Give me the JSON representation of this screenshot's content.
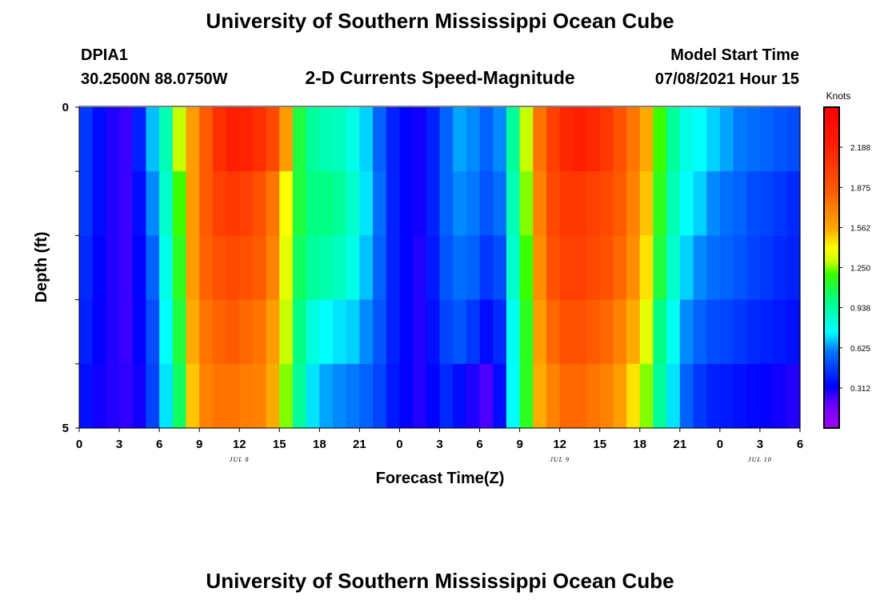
{
  "header": {
    "title": "University of Southern Mississippi Ocean Cube",
    "station_id": "DPIA1",
    "coordinates": "30.2500N  88.0750W",
    "subtitle": "2-D Currents Speed-Magnitude",
    "model_label": "Model Start Time",
    "model_time": "07/08/2021 Hour 15"
  },
  "footer": {
    "title": "University of Southern Mississippi Ocean Cube"
  },
  "chart_data": {
    "type": "heatmap",
    "title": "2-D Currents Speed-Magnitude",
    "xlabel": "Forecast Time(Z)",
    "ylabel": "Depth (ft)",
    "x_tick_labels": [
      "0",
      "3",
      "6",
      "9",
      "12",
      "15",
      "18",
      "21",
      "0",
      "3",
      "6",
      "9",
      "12",
      "15",
      "18",
      "21",
      "0",
      "3",
      "6"
    ],
    "x_tick_hours": [
      0,
      3,
      6,
      9,
      12,
      15,
      18,
      21,
      24,
      27,
      30,
      33,
      36,
      39,
      42,
      45,
      48,
      51,
      54
    ],
    "xlim": [
      0,
      54
    ],
    "date_labels": [
      {
        "text": "JUL 8",
        "hour": 12
      },
      {
        "text": "JUL 9",
        "hour": 36
      },
      {
        "text": "JUL 10",
        "hour": 51
      }
    ],
    "y_tick_labels": [
      "0",
      "5"
    ],
    "ylim": [
      0,
      5
    ],
    "colorbar": {
      "unit": "Knots",
      "min": 0.0,
      "max": 2.5,
      "tick_labels": [
        "2.188",
        "1.875",
        "1.562",
        "1.250",
        "0.938",
        "0.625",
        "0.312"
      ],
      "tick_values": [
        2.188,
        1.875,
        1.562,
        1.25,
        0.938,
        0.625,
        0.312
      ]
    },
    "depth_layers": [
      0,
      1,
      2,
      3,
      4
    ],
    "time_hours": [
      0,
      1,
      2,
      3,
      4,
      5,
      6,
      7,
      8,
      9,
      10,
      11,
      12,
      13,
      14,
      15,
      16,
      17,
      18,
      19,
      20,
      21,
      22,
      23,
      24,
      25,
      26,
      27,
      28,
      29,
      30,
      31,
      32,
      33,
      34,
      35,
      36,
      37,
      38,
      39,
      40,
      41,
      42,
      43,
      44,
      45,
      46,
      47,
      48,
      49,
      50,
      51,
      52,
      53
    ],
    "speed_knots": [
      [
        0.45,
        0.35,
        0.28,
        0.25,
        0.4,
        0.68,
        0.9,
        1.3,
        1.6,
        1.85,
        2.1,
        2.2,
        2.18,
        2.1,
        1.95,
        1.6,
        1.1,
        0.95,
        0.9,
        0.88,
        0.8,
        0.7,
        0.55,
        0.4,
        0.33,
        0.3,
        0.4,
        0.55,
        0.65,
        0.62,
        0.55,
        0.62,
        0.95,
        1.3,
        1.75,
        2.0,
        2.15,
        2.2,
        2.15,
        2.05,
        1.9,
        1.75,
        1.55,
        1.2,
        0.95,
        0.8,
        0.75,
        0.7,
        0.65,
        0.6,
        0.58,
        0.55,
        0.52,
        0.5
      ],
      [
        0.45,
        0.35,
        0.28,
        0.25,
        0.35,
        0.62,
        0.85,
        1.2,
        1.6,
        1.85,
        2.0,
        2.05,
        2.0,
        1.9,
        1.75,
        1.4,
        1.1,
        1.0,
        1.0,
        0.95,
        0.85,
        0.72,
        0.58,
        0.4,
        0.33,
        0.3,
        0.4,
        0.55,
        0.62,
        0.6,
        0.52,
        0.58,
        0.9,
        1.25,
        1.7,
        1.95,
        2.05,
        2.05,
        2.0,
        1.95,
        1.85,
        1.7,
        1.5,
        1.15,
        0.9,
        0.75,
        0.7,
        0.62,
        0.58,
        0.55,
        0.5,
        0.48,
        0.45,
        0.42
      ],
      [
        0.42,
        0.33,
        0.28,
        0.25,
        0.33,
        0.55,
        0.8,
        1.15,
        1.6,
        1.82,
        1.9,
        1.95,
        1.9,
        1.85,
        1.7,
        1.35,
        1.05,
        0.95,
        0.92,
        0.88,
        0.8,
        0.68,
        0.55,
        0.4,
        0.33,
        0.28,
        0.38,
        0.52,
        0.58,
        0.55,
        0.45,
        0.5,
        0.85,
        1.2,
        1.65,
        1.9,
        2.0,
        2.0,
        1.95,
        1.9,
        1.8,
        1.65,
        1.45,
        1.1,
        0.85,
        0.7,
        0.62,
        0.58,
        0.55,
        0.52,
        0.48,
        0.45,
        0.42,
        0.4
      ],
      [
        0.4,
        0.32,
        0.28,
        0.25,
        0.32,
        0.5,
        0.75,
        1.1,
        1.55,
        1.75,
        1.82,
        1.85,
        1.8,
        1.75,
        1.6,
        1.3,
        1.0,
        0.82,
        0.75,
        0.72,
        0.7,
        0.62,
        0.52,
        0.4,
        0.33,
        0.28,
        0.36,
        0.48,
        0.52,
        0.45,
        0.35,
        0.42,
        0.78,
        1.15,
        1.6,
        1.8,
        1.9,
        1.9,
        1.85,
        1.8,
        1.7,
        1.55,
        1.35,
        1.0,
        0.78,
        0.62,
        0.55,
        0.5,
        0.48,
        0.45,
        0.42,
        0.4,
        0.38,
        0.36
      ],
      [
        0.36,
        0.3,
        0.28,
        0.26,
        0.3,
        0.48,
        0.72,
        1.05,
        1.5,
        1.7,
        1.75,
        1.75,
        1.72,
        1.7,
        1.55,
        1.25,
        0.95,
        0.72,
        0.65,
        0.62,
        0.6,
        0.55,
        0.48,
        0.38,
        0.32,
        0.28,
        0.33,
        0.42,
        0.35,
        0.28,
        0.22,
        0.35,
        0.75,
        1.15,
        1.55,
        1.7,
        1.8,
        1.8,
        1.75,
        1.7,
        1.6,
        1.45,
        1.25,
        0.95,
        0.72,
        0.55,
        0.45,
        0.4,
        0.38,
        0.36,
        0.34,
        0.32,
        0.3,
        0.28
      ]
    ]
  }
}
